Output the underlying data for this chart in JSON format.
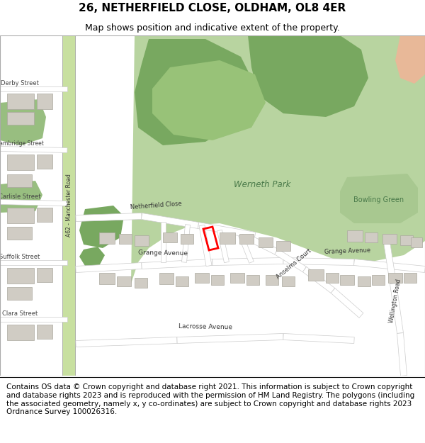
{
  "title": "26, NETHERFIELD CLOSE, OLDHAM, OL8 4ER",
  "subtitle": "Map shows position and indicative extent of the property.",
  "title_fontsize": 11,
  "subtitle_fontsize": 9,
  "copyright_text": "Contains OS data © Crown copyright and database right 2021. This information is subject to Crown copyright and database rights 2023 and is reproduced with the permission of HM Land Registry. The polygons (including the associated geometry, namely x, y co-ordinates) are subject to Crown copyright and database rights 2023 Ordnance Survey 100026316.",
  "copyright_fontsize": 7.5,
  "map_bg": "#f0ede8",
  "road_color": "#ffffff",
  "road_outline_color": "#cccccc",
  "building_color": "#d0ccc4",
  "building_outline_color": "#aaa89e",
  "park_light_color": "#b8d4a0",
  "park_dark_color": "#78a860",
  "park_medium_color": "#98c278",
  "a62_color": "#c8e0a0",
  "salmon_color": "#e8b898",
  "red_color": "#ff0000"
}
